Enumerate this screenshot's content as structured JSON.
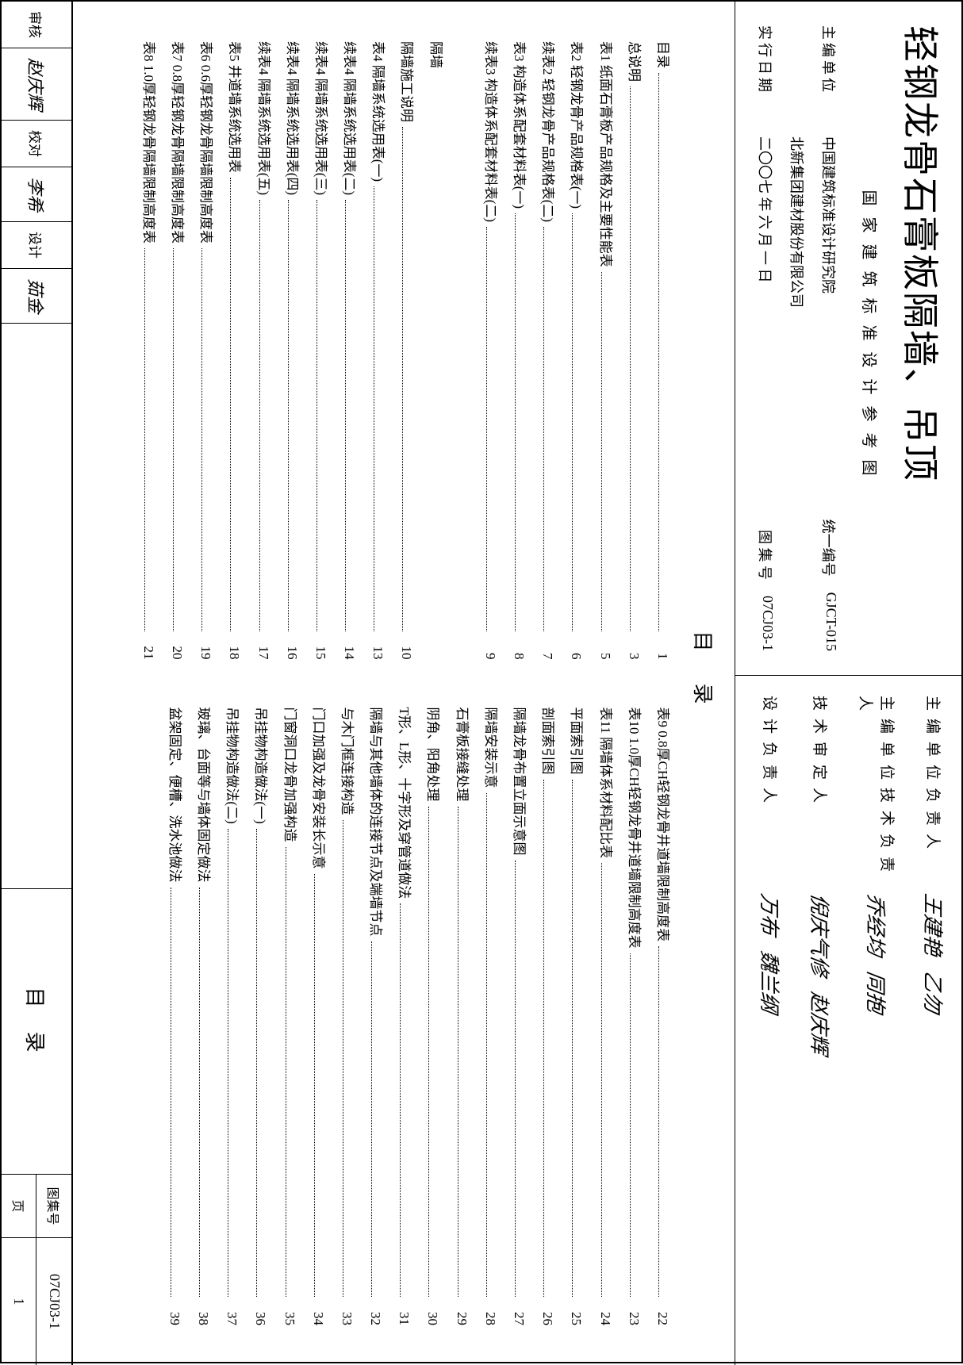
{
  "title": "轻钢龙骨石膏板隔墙、吊顶",
  "subtitle": "国家建筑标准设计参考图",
  "info": {
    "org_label": "主编单位",
    "org1": "中国建筑标准设计研究院",
    "org2": "北新集团建材股份有限公司",
    "date_label": "实行日期",
    "date": "二〇〇七 年 六 月 一 日",
    "code1_label": "统一编号",
    "code1": "GJCT-015",
    "code2_label": "图 集 号",
    "code2": "07CJ03-1"
  },
  "signers": [
    {
      "label": "主编单位负责人",
      "sigs": [
        "王建艳",
        "乙勿"
      ]
    },
    {
      "label": "主编单位技术负责人",
      "sigs": [
        "乔经均",
        "同抱"
      ]
    },
    {
      "label": "技术审定人",
      "sigs": [
        "倪庆气修",
        "赵庆辉"
      ]
    },
    {
      "label": "设计负责人",
      "sigs": [
        "万布",
        "魏兰纲"
      ]
    }
  ],
  "toc_title": "目录",
  "toc_left": [
    {
      "t": "目录",
      "p": "1"
    },
    {
      "t": "总说明",
      "p": "3"
    },
    {
      "t": "表1 纸面石膏板产品规格及主要性能表",
      "p": "5"
    },
    {
      "t": "表2 轻钢龙骨产品规格表(一)",
      "p": "6"
    },
    {
      "t": "续表2 轻钢龙骨产品规格表(二)",
      "p": "7"
    },
    {
      "t": "表3 构造体系配套材料表(一)",
      "p": "8"
    },
    {
      "t": "续表3 构造体系配套材料表(二)",
      "p": "9"
    },
    {
      "t": "隔墙",
      "p": ""
    },
    {
      "t": "隔墙施工说明",
      "p": "10"
    },
    {
      "t": "表4 隔墙系统选用表(一)",
      "p": "13"
    },
    {
      "t": "续表4 隔墙系统选用表(二)",
      "p": "14"
    },
    {
      "t": "续表4 隔墙系统选用表(三)",
      "p": "15"
    },
    {
      "t": "续表4 隔墙系统选用表(四)",
      "p": "16"
    },
    {
      "t": "续表4 隔墙系统选用表(五)",
      "p": "17"
    },
    {
      "t": "表5 井道墙系统选用表",
      "p": "18"
    },
    {
      "t": "表6 0.6厚轻钢龙骨隔墙限制高度表",
      "p": "19"
    },
    {
      "t": "表7 0.8厚轻钢龙骨隔墙限制高度表",
      "p": "20"
    },
    {
      "t": "表8 1.0厚轻钢龙骨隔墙限制高度表",
      "p": "21"
    }
  ],
  "toc_right": [
    {
      "t": "表9 0.8厚CH轻钢龙骨井道墙限制高度表",
      "p": "22"
    },
    {
      "t": "表10 1.0厚CH轻钢龙骨井道墙限制高度表",
      "p": "23"
    },
    {
      "t": "表11 隔墙体系材料配比表",
      "p": "24"
    },
    {
      "t": "平面索引图",
      "p": "25"
    },
    {
      "t": "剖面索引图",
      "p": "26"
    },
    {
      "t": "隔墙龙骨布置立面示意图",
      "p": "27"
    },
    {
      "t": "隔墙安装示意",
      "p": "28"
    },
    {
      "t": "石膏板接缝处理",
      "p": "29"
    },
    {
      "t": "阴角、阳角处理",
      "p": "30"
    },
    {
      "t": "T形、L形、十字形及穿管道做法",
      "p": "31"
    },
    {
      "t": "隔墙与其他墙体的连接节点及端墙节点",
      "p": "32"
    },
    {
      "t": "与木门框连接构造",
      "p": "33"
    },
    {
      "t": "门口加强及龙骨安装长示意",
      "p": "34"
    },
    {
      "t": "门窗洞口龙骨加强构造",
      "p": "35"
    },
    {
      "t": "吊挂物构造做法(一)",
      "p": "36"
    },
    {
      "t": "吊挂物构造做法(二)",
      "p": "37"
    },
    {
      "t": "玻璃、台面等与墙体固定做法",
      "p": "38"
    },
    {
      "t": "盆架固定、便槽、洗水池做法",
      "p": "39"
    }
  ],
  "footer": {
    "approvers": [
      {
        "label": "审核",
        "sig": "赵庆辉"
      },
      {
        "label": "赵庆辉",
        "sig": ""
      },
      {
        "label": "校对",
        "sig": "李芹"
      },
      {
        "label": "李希",
        "sig": ""
      },
      {
        "label": "设计",
        "sig": "薛金"
      },
      {
        "label": "茹金",
        "sig": ""
      }
    ],
    "title": "目录",
    "code_label": "图集号",
    "code": "07CJ03-1",
    "page_label": "页",
    "page": "1"
  }
}
